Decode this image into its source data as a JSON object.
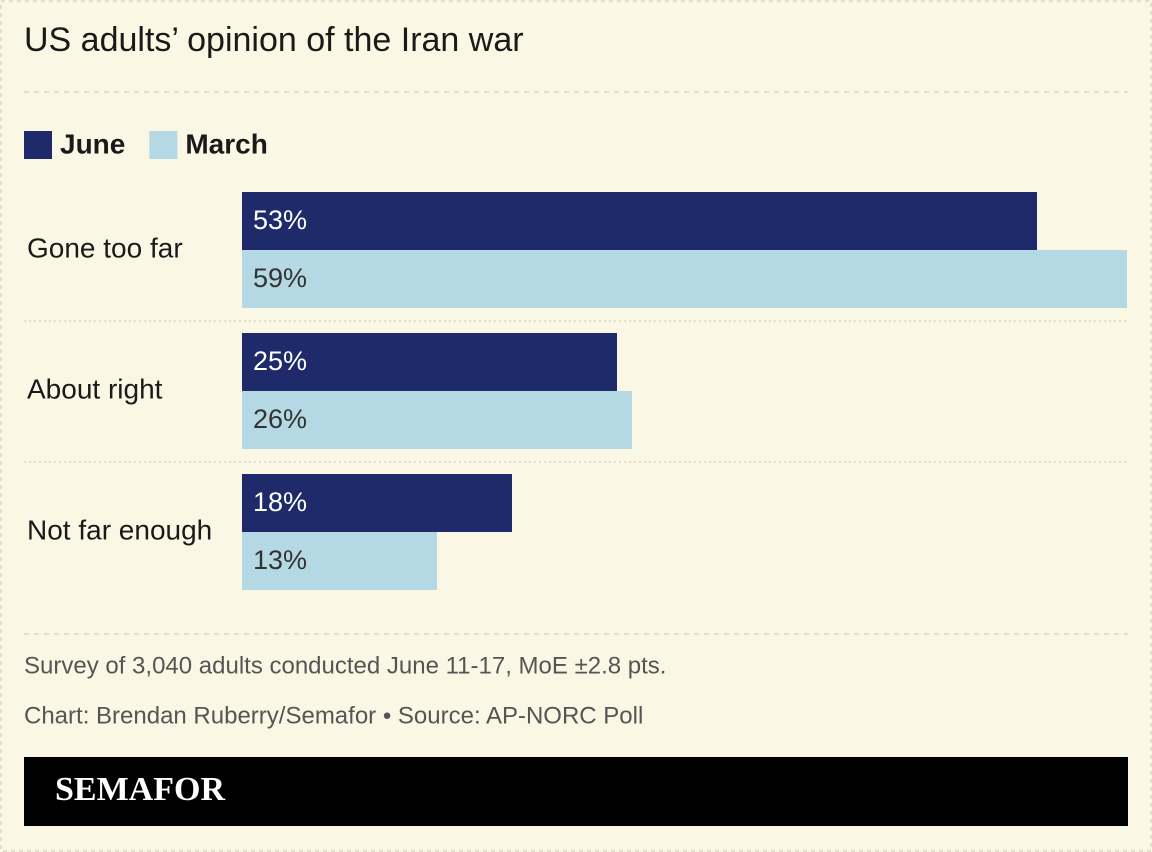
{
  "chart_data": {
    "type": "hbar",
    "title": "US adults’ opinion of the Iran war",
    "categories": [
      "Gone too far",
      "About right",
      "Not far enough"
    ],
    "series": [
      {
        "name": "June",
        "color": "#1f2a6b",
        "values": [
          53,
          25,
          18
        ],
        "value_labels": [
          "53%",
          "25%",
          "18%"
        ]
      },
      {
        "name": "March",
        "color": "#b5d8e5",
        "values": [
          59,
          26,
          13
        ],
        "value_labels": [
          "59%",
          "26%",
          "13%"
        ]
      }
    ],
    "notes": [
      "Survey of 3,040 adults conducted June 11-17, MoE ±2.8 pts.",
      "Chart: Brendan Ruberry/Semafor • Source: AP-NORC Poll"
    ]
  },
  "brand": "SEMAFOR"
}
